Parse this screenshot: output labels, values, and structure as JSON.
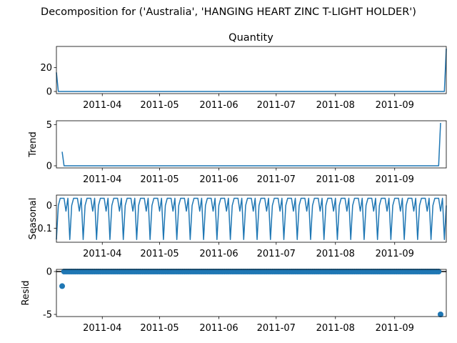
{
  "suptitle": "Decomposition for ('Australia', 'HANGING HEART ZINC T-LIGHT HOLDER')",
  "x_tick_labels": [
    "2011-04",
    "2011-05",
    "2011-06",
    "2011-07",
    "2011-08",
    "2011-09"
  ],
  "colors": {
    "series": "#1f77b4",
    "zero_line": "#000000"
  },
  "chart_data": [
    {
      "type": "line",
      "title": "Quantity",
      "ylabel": "",
      "xlim": [
        "2011-03-08",
        "2011-09-28"
      ],
      "ylim": [
        -1.8,
        37.8
      ],
      "yticks": [
        0,
        20
      ],
      "x": [
        "2011-03-08",
        "2011-03-09",
        "2011-09-27",
        "2011-09-28"
      ],
      "values": [
        16,
        0,
        0,
        36
      ]
    },
    {
      "type": "line",
      "title": "",
      "ylabel": "Trend",
      "xlim": [
        "2011-03-08",
        "2011-09-28"
      ],
      "ylim": [
        -0.26,
        5.46
      ],
      "yticks": [
        0,
        5
      ],
      "x": [
        "2011-03-11",
        "2011-03-12",
        "2011-09-24",
        "2011-09-25"
      ],
      "values": [
        1.7,
        0,
        0,
        5.2
      ]
    },
    {
      "type": "line",
      "title": "",
      "ylabel": "Seasonal",
      "xlim": [
        "2011-03-08",
        "2011-09-28"
      ],
      "ylim": [
        -0.162,
        0.046
      ],
      "yticks": [
        0.0,
        -0.1
      ],
      "period_days": 7,
      "start": "2011-03-08",
      "end": "2011-09-28",
      "pattern": [
        -0.15,
        0.0,
        0.032,
        0.032,
        0.032,
        -0.025,
        0.032
      ]
    },
    {
      "type": "scatter",
      "title": "",
      "ylabel": "Resid",
      "xlim": [
        "2011-03-08",
        "2011-09-28"
      ],
      "ylim": [
        -5.25,
        0.25
      ],
      "yticks": [
        0,
        -5
      ],
      "zero_line": true,
      "dense_range": [
        "2011-03-12",
        "2011-09-24"
      ],
      "dense_value": 0.0,
      "outliers": [
        {
          "x": "2011-03-11",
          "y": -1.7
        },
        {
          "x": "2011-09-25",
          "y": -5.0
        }
      ]
    }
  ]
}
